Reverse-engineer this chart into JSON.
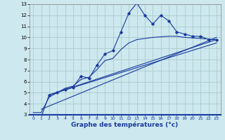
{
  "title": "Graphe des températures (°c)",
  "bg_color": "#cde8ee",
  "grid_color": "#aacccc",
  "line_color": "#1a3a9e",
  "xlim": [
    -0.5,
    23.5
  ],
  "ylim": [
    3,
    13
  ],
  "xticks": [
    0,
    1,
    2,
    3,
    4,
    5,
    6,
    7,
    8,
    9,
    10,
    11,
    12,
    13,
    14,
    15,
    16,
    17,
    18,
    19,
    20,
    21,
    22,
    23
  ],
  "yticks": [
    3,
    4,
    5,
    6,
    7,
    8,
    9,
    10,
    11,
    12,
    13
  ],
  "main_x": [
    0,
    1,
    2,
    3,
    4,
    5,
    6,
    7,
    8,
    9,
    10,
    11,
    12,
    13,
    14,
    15,
    16,
    17,
    18,
    19,
    20,
    21,
    22,
    23
  ],
  "main_y": [
    2.9,
    2.8,
    4.8,
    5.0,
    5.3,
    5.5,
    6.5,
    6.3,
    7.5,
    8.5,
    8.8,
    10.5,
    12.2,
    13.1,
    12.0,
    11.2,
    12.0,
    11.5,
    10.5,
    10.3,
    10.1,
    10.1,
    9.8,
    9.8
  ],
  "trend1_x": [
    1,
    23
  ],
  "trend1_y": [
    3.5,
    10.0
  ],
  "trend2_x": [
    2,
    23
  ],
  "trend2_y": [
    4.8,
    9.8
  ],
  "trend3_x": [
    2,
    23
  ],
  "trend3_y": [
    4.8,
    9.5
  ],
  "smooth_x": [
    0,
    1,
    2,
    3,
    4,
    5,
    6,
    7,
    8,
    9,
    10,
    11,
    12,
    13,
    14,
    15,
    16,
    17,
    18,
    19,
    20,
    21,
    22,
    23
  ],
  "smooth_y": [
    3.2,
    3.2,
    4.6,
    5.0,
    5.4,
    5.6,
    6.2,
    6.4,
    7.1,
    7.9,
    8.1,
    8.9,
    9.5,
    9.8,
    9.9,
    10.0,
    10.05,
    10.1,
    10.1,
    10.0,
    9.95,
    9.9,
    9.85,
    9.8
  ]
}
